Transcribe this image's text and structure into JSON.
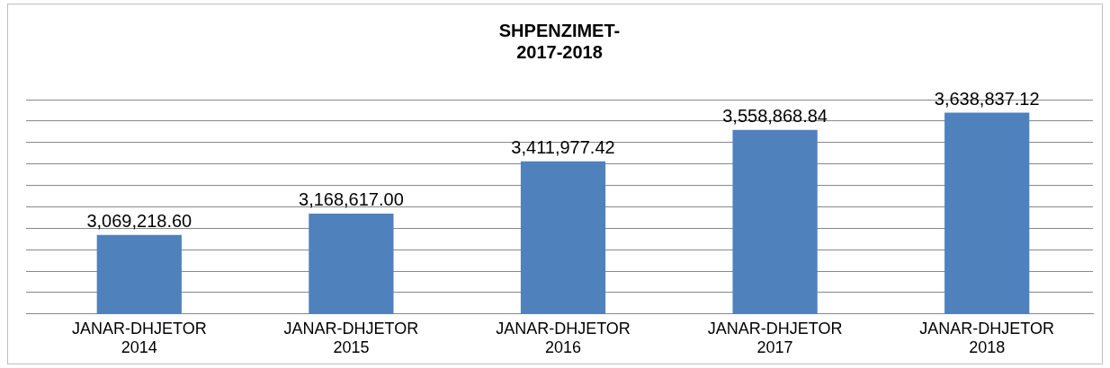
{
  "chart_data": {
    "type": "bar",
    "title": "SHPENZIMET-\n2017-2018",
    "categories": [
      "JANAR-DHJETOR 2014",
      "JANAR-DHJETOR 2015",
      "JANAR-DHJETOR 2016",
      "JANAR-DHJETOR 2017",
      "JANAR-DHJETOR 2018"
    ],
    "values": [
      3069218.6,
      3168617.0,
      3411977.42,
      3558868.84,
      3638837.12
    ],
    "value_labels": [
      "3,069,218.60",
      "3,168,617.00",
      "3,411,977.42",
      "3,558,868.84",
      "3,638,837.12"
    ],
    "color": "#4f81bd",
    "ylim": [
      2700000,
      3700000
    ],
    "yticks": [
      {
        "value": 2700000,
        "label": null
      },
      {
        "value": 2800000,
        "label": null
      },
      {
        "value": 2900000,
        "label": null
      },
      {
        "value": 3000000,
        "label": null
      },
      {
        "value": 3100000,
        "label": null
      },
      {
        "value": 3200000,
        "label": null
      },
      {
        "value": 3300000,
        "label": null
      },
      {
        "value": 3400000,
        "label": null
      },
      {
        "value": 3500000,
        "label": null
      },
      {
        "value": 3600000,
        "label": null
      },
      {
        "value": 3700000,
        "label": null
      }
    ],
    "tick_labels": "x",
    "grid": "y",
    "legend": false
  }
}
